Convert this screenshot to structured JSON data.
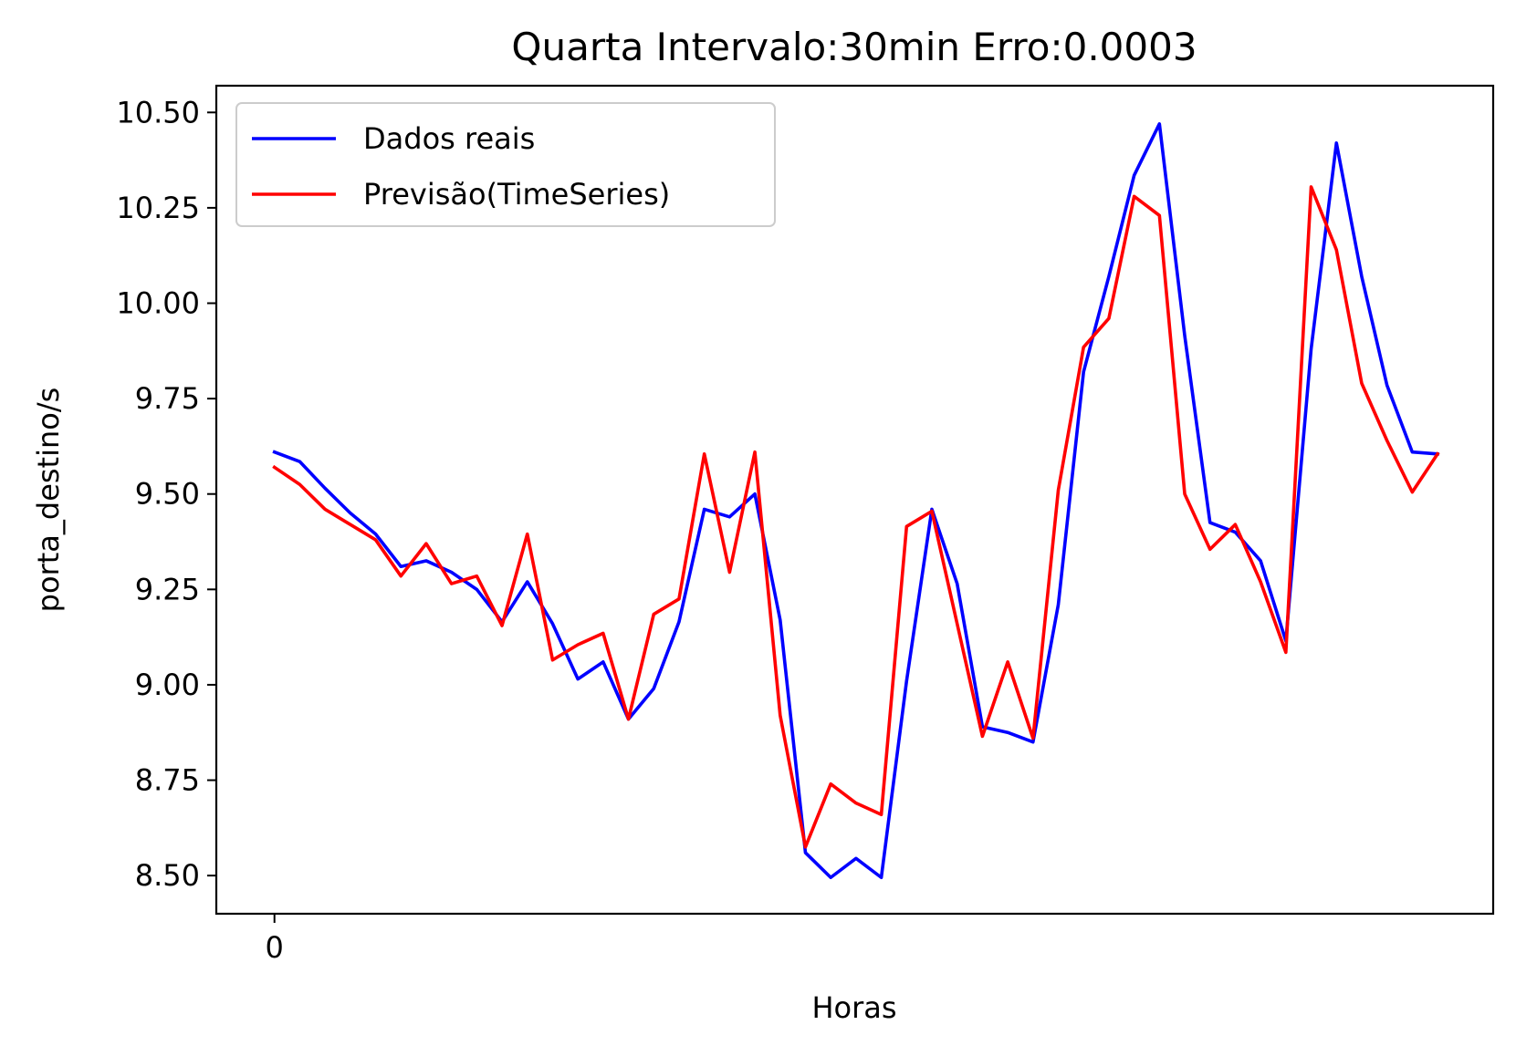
{
  "chart_data": {
    "type": "line",
    "title": "Quarta Intervalo:30min Erro:0.0003",
    "xlabel": "Horas",
    "ylabel": "porta_destino/s",
    "x": [
      0,
      1,
      2,
      3,
      4,
      5,
      6,
      7,
      8,
      9,
      10,
      11,
      12,
      13,
      14,
      15,
      16,
      17,
      18,
      19,
      20,
      21,
      22,
      23,
      24,
      25,
      26,
      27,
      28,
      29,
      30,
      31,
      32,
      33,
      34,
      35,
      36,
      37,
      38,
      39,
      40,
      41,
      42,
      43,
      44,
      45,
      46
    ],
    "xlim": [
      -2.3,
      48.2
    ],
    "ylim": [
      8.4,
      10.57
    ],
    "x_ticks": [
      {
        "value": 0,
        "label": "0"
      }
    ],
    "y_ticks": [
      {
        "value": 8.5,
        "label": "8.50"
      },
      {
        "value": 8.75,
        "label": "8.75"
      },
      {
        "value": 9.0,
        "label": "9.00"
      },
      {
        "value": 9.25,
        "label": "9.25"
      },
      {
        "value": 9.5,
        "label": "9.50"
      },
      {
        "value": 9.75,
        "label": "9.75"
      },
      {
        "value": 10.0,
        "label": "10.00"
      },
      {
        "value": 10.25,
        "label": "10.25"
      },
      {
        "value": 10.5,
        "label": "10.50"
      }
    ],
    "grid": false,
    "legend_position": "top-left",
    "series": [
      {
        "name": "Dados reais",
        "color": "#0000ff",
        "values": [
          9.61,
          9.585,
          9.515,
          9.45,
          9.395,
          9.31,
          9.325,
          9.295,
          9.25,
          9.165,
          9.27,
          9.16,
          9.015,
          9.06,
          8.91,
          8.99,
          9.165,
          9.46,
          9.44,
          9.5,
          9.17,
          8.56,
          8.495,
          8.545,
          8.495,
          9.01,
          9.46,
          9.265,
          8.89,
          8.875,
          8.85,
          9.21,
          9.82,
          10.07,
          10.335,
          10.47,
          9.915,
          9.425,
          9.4,
          9.325,
          9.115,
          9.88,
          10.42,
          10.07,
          9.785,
          9.61,
          9.605
        ]
      },
      {
        "name": "Previsão(TimeSeries)",
        "color": "#ff0000",
        "values": [
          9.57,
          9.525,
          9.46,
          9.42,
          9.38,
          9.285,
          9.37,
          9.265,
          9.285,
          9.155,
          9.395,
          9.065,
          9.105,
          9.135,
          8.91,
          9.185,
          9.225,
          9.605,
          9.295,
          9.61,
          8.92,
          8.575,
          8.74,
          8.69,
          8.66,
          9.415,
          9.455,
          9.16,
          8.865,
          9.06,
          8.86,
          9.51,
          9.885,
          9.96,
          10.28,
          10.23,
          9.5,
          9.355,
          9.42,
          9.27,
          9.085,
          10.305,
          10.14,
          9.79,
          9.64,
          9.505,
          9.605
        ]
      }
    ]
  }
}
